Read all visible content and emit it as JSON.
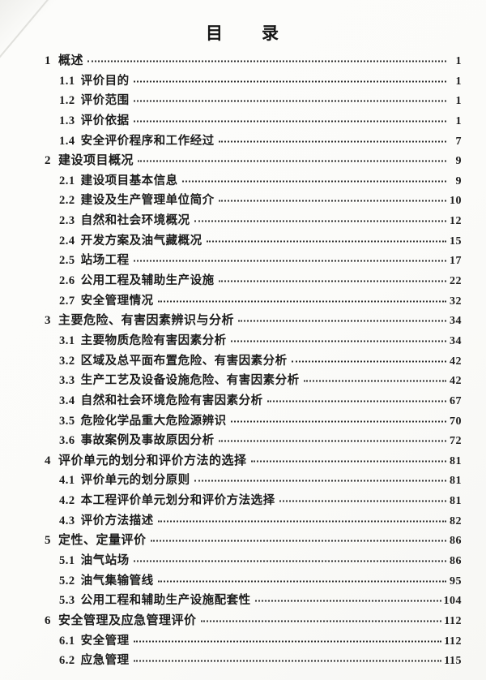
{
  "document": {
    "title": "目　　录"
  },
  "toc": {
    "entries": [
      {
        "level": 1,
        "num": "1",
        "title": "概述",
        "page": "1"
      },
      {
        "level": 2,
        "num": "1.1",
        "title": "评价目的",
        "page": "1"
      },
      {
        "level": 2,
        "num": "1.2",
        "title": "评价范围",
        "page": "1"
      },
      {
        "level": 2,
        "num": "1.3",
        "title": "评价依据",
        "page": "1"
      },
      {
        "level": 2,
        "num": "1.4",
        "title": "安全评价程序和工作经过",
        "page": "7"
      },
      {
        "level": 1,
        "num": "2",
        "title": "建设项目概况",
        "page": "9"
      },
      {
        "level": 2,
        "num": "2.1",
        "title": "建设项目基本信息",
        "page": "9"
      },
      {
        "level": 2,
        "num": "2.2",
        "title": "建设及生产管理单位简介",
        "page": "10"
      },
      {
        "level": 2,
        "num": "2.3",
        "title": "自然和社会环境概况",
        "page": "12"
      },
      {
        "level": 2,
        "num": "2.4",
        "title": "开发方案及油气藏概况",
        "page": "15"
      },
      {
        "level": 2,
        "num": "2.5",
        "title": "站场工程",
        "page": "17"
      },
      {
        "level": 2,
        "num": "2.6",
        "title": "公用工程及辅助生产设施",
        "page": "22"
      },
      {
        "level": 2,
        "num": "2.7",
        "title": "安全管理情况",
        "page": "32"
      },
      {
        "level": 1,
        "num": "3",
        "title": "主要危险、有害因素辨识与分析",
        "page": "34"
      },
      {
        "level": 2,
        "num": "3.1",
        "title": "主要物质危险有害因素分析",
        "page": "34"
      },
      {
        "level": 2,
        "num": "3.2",
        "title": "区域及总平面布置危险、有害因素分析",
        "page": "42"
      },
      {
        "level": 2,
        "num": "3.3",
        "title": "生产工艺及设备设施危险、有害因素分析",
        "page": "42"
      },
      {
        "level": 2,
        "num": "3.4",
        "title": "自然和社会环境危险有害因素分析",
        "page": "67"
      },
      {
        "level": 2,
        "num": "3.5",
        "title": "危险化学品重大危险源辨识",
        "page": "70"
      },
      {
        "level": 2,
        "num": "3.6",
        "title": "事故案例及事故原因分析",
        "page": "72"
      },
      {
        "level": 1,
        "num": "4",
        "title": "评价单元的划分和评价方法的选择",
        "page": "81"
      },
      {
        "level": 2,
        "num": "4.1",
        "title": "评价单元的划分原则",
        "page": "81"
      },
      {
        "level": 2,
        "num": "4.2",
        "title": "本工程评价单元划分和评价方法选择",
        "page": "81"
      },
      {
        "level": 2,
        "num": "4.3",
        "title": "评价方法描述",
        "page": "82"
      },
      {
        "level": 1,
        "num": "5",
        "title": "定性、定量评价",
        "page": "86"
      },
      {
        "level": 2,
        "num": "5.1",
        "title": "油气站场",
        "page": "86"
      },
      {
        "level": 2,
        "num": "5.2",
        "title": "油气集输管线",
        "page": "95"
      },
      {
        "level": 2,
        "num": "5.3",
        "title": "公用工程和辅助生产设施配套性",
        "page": "104"
      },
      {
        "level": 1,
        "num": "6",
        "title": "安全管理及应急管理评价",
        "page": "112"
      },
      {
        "level": 2,
        "num": "6.1",
        "title": "安全管理",
        "page": "112"
      },
      {
        "level": 2,
        "num": "6.2",
        "title": "应急管理",
        "page": "115"
      }
    ]
  },
  "colors": {
    "text": "#1c1c1c",
    "paper": "#fbfbf9",
    "leader_dots": "#2c2c2c"
  }
}
